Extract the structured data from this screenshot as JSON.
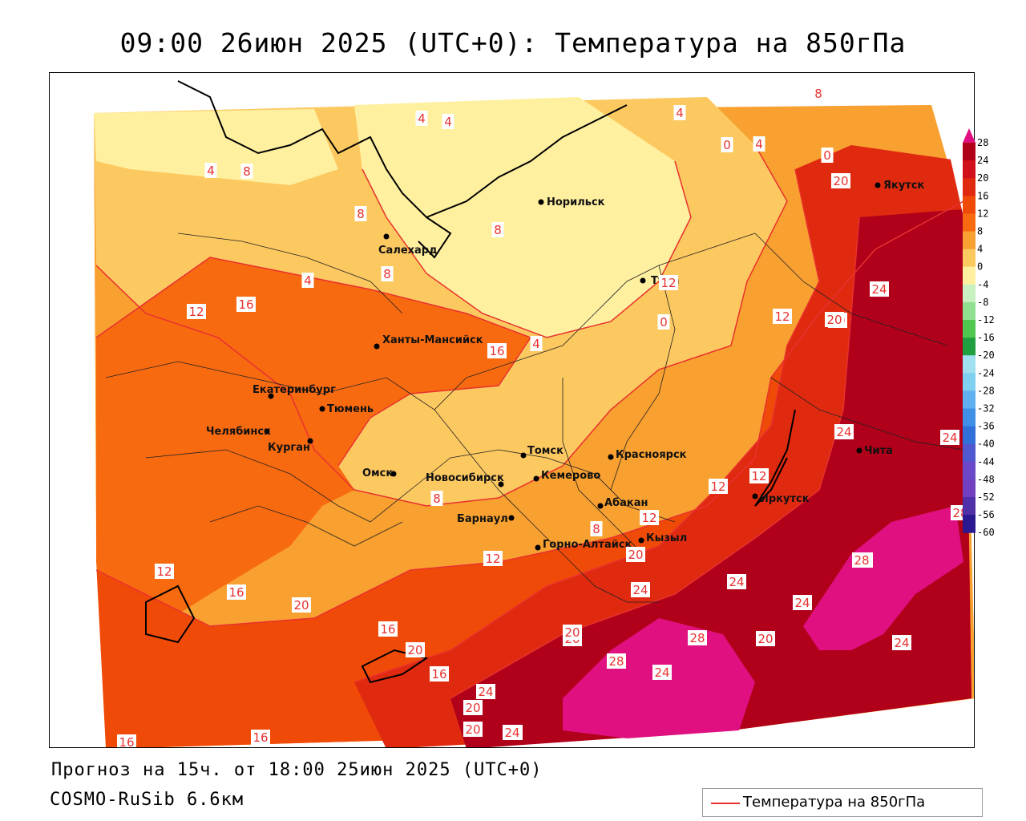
{
  "title": "09:00 26июн 2025 (UTC+0): Температура на 850гПа",
  "footer": {
    "forecast": "Прогноз на 15ч. от 18:00 25июн 2025 (UTC+0)",
    "model": "COSMO-RuSib 6.6км"
  },
  "legend": {
    "label": "Температура на 850гПа",
    "line_color": "#e8312f"
  },
  "colorbar": {
    "ticks": [
      "28",
      "24",
      "20",
      "16",
      "12",
      "8",
      "4",
      "0",
      "-4",
      "-8",
      "-12",
      "-16",
      "-20",
      "-24",
      "-28",
      "-32",
      "-36",
      "-40",
      "-44",
      "-48",
      "-52",
      "-56",
      "-60"
    ],
    "colors": [
      "#b0001a",
      "#d0101a",
      "#e02a10",
      "#f04a08",
      "#f86a10",
      "#f8a030",
      "#fcc860",
      "#fff0a0",
      "#c8f0c0",
      "#90e090",
      "#50c850",
      "#20a040",
      "#a0e0f0",
      "#80d0f0",
      "#60b0f0",
      "#4090e8",
      "#3070d8",
      "#5058d0",
      "#6a48c8",
      "#7040c0",
      "#5030a8",
      "#2a1890"
    ]
  },
  "colors": {
    "contour": "#e8312f",
    "t0_4": "#fff0a0",
    "t4_8": "#fcc860",
    "t8_12": "#f8a030",
    "t12_16": "#f86a10",
    "t16_20": "#f04a08",
    "t20_24": "#e02a10",
    "t24_28": "#b0001a",
    "t28": "#e01080"
  },
  "cities": [
    {
      "name": "Норильск"
    },
    {
      "name": "Якутск"
    },
    {
      "name": "Салехард"
    },
    {
      "name": "Тура"
    },
    {
      "name": "Ханты-Мансийск"
    },
    {
      "name": "Екатеринбург"
    },
    {
      "name": "Тюмень"
    },
    {
      "name": "Челябинск"
    },
    {
      "name": "Курган"
    },
    {
      "name": "Омск"
    },
    {
      "name": "Новосибирск"
    },
    {
      "name": "Томск"
    },
    {
      "name": "Кемерово"
    },
    {
      "name": "Красноярск"
    },
    {
      "name": "Абакан"
    },
    {
      "name": "Барнаул"
    },
    {
      "name": "Горно-Алтайск"
    },
    {
      "name": "Кызыл"
    },
    {
      "name": "Иркутск"
    },
    {
      "name": "Чита"
    }
  ],
  "contour_labels": [
    "8",
    "4",
    "4",
    "4",
    "0",
    "0",
    "4",
    "4",
    "8",
    "8",
    "8",
    "8",
    "12",
    "16",
    "4",
    "4",
    "0",
    "12",
    "20",
    "16",
    "24",
    "20",
    "24",
    "24",
    "8",
    "8",
    "12",
    "12",
    "12",
    "12",
    "20",
    "28",
    "28",
    "16",
    "16",
    "20",
    "12",
    "24",
    "24",
    "24",
    "20",
    "28",
    "24",
    "28",
    "28",
    "20",
    "24",
    "12",
    "16",
    "20",
    "20",
    "20",
    "24",
    "20",
    "24",
    "16",
    "16",
    "20",
    "24"
  ]
}
